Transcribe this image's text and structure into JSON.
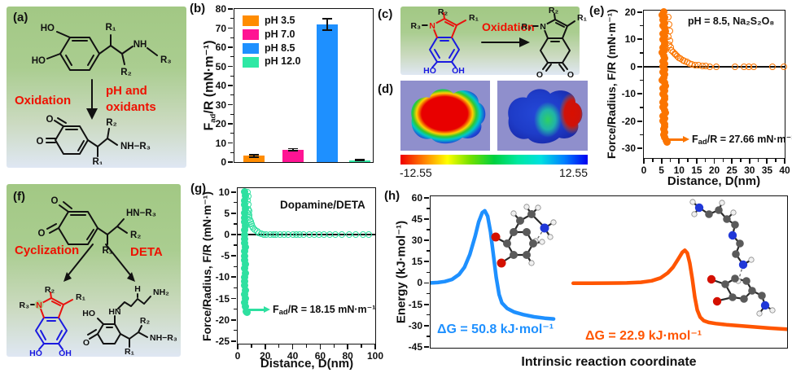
{
  "colors": {
    "text_red": "#ee1100",
    "struct_red": "#e8120e",
    "struct_blue": "#1a1ae0",
    "green_bg_top": "#a2c884",
    "green_bg_mid": "#aacd90",
    "green_bg_low": "#cbdac0",
    "green_bg_bottom": "#dfe7f3",
    "lavender_bg": "#8f8fcc",
    "colorbar": [
      "#f00000",
      "#ff8000",
      "#ffff00",
      "#70e000",
      "#00d040",
      "#00e8a0",
      "#00e0e0",
      "#0080ff",
      "#0000f0"
    ]
  },
  "panels": {
    "a": {
      "label": "(a)",
      "oxidation_label": "Oxidation",
      "condition_line1": "pH and",
      "condition_line2": "oxidants"
    },
    "b": {
      "label": "(b)"
    },
    "c": {
      "label": "(c)",
      "oxidation_label": "Oxidation"
    },
    "d": {
      "label": "(d)",
      "scale_min": "-12.55",
      "scale_max": "12.55"
    },
    "e": {
      "label": "(e)"
    },
    "f": {
      "label": "(f)",
      "cyclization_label": "Cyclization",
      "deta_label": "DETA"
    },
    "g": {
      "label": "(g)"
    },
    "h": {
      "label": "(h)"
    }
  },
  "chem_labels": {
    "r1": "R₁",
    "r2": "R₂",
    "r3": "R₃",
    "ho": "HO",
    "oh": "OH",
    "o": "O",
    "nh": "NH",
    "hn": "HN",
    "n": "N",
    "h": "H",
    "nh2": "NH₂",
    "nh_r3": "NH−R₃",
    "hn_r3": "HN−R₃"
  },
  "chart_data": [
    {
      "panel": "b",
      "type": "bar",
      "ylabel_prefix": "F",
      "ylabel_sub": "ad",
      "ylabel_rest": "/R (mN·m⁻¹)",
      "categories": [
        "pH 3.5",
        "pH 7.0",
        "pH 8.5",
        "pH 12.0"
      ],
      "values": [
        3.2,
        6.5,
        72,
        1.0
      ],
      "errors": [
        0.6,
        0.5,
        3,
        0.3
      ],
      "colors": [
        "#ff8c00",
        "#ff1493",
        "#1e90ff",
        "#2ee8a4"
      ],
      "ylim": [
        0,
        80
      ],
      "yticks": [
        0,
        10,
        20,
        30,
        40,
        50,
        60,
        70,
        80
      ],
      "legend_position": "top-left",
      "grid": false
    },
    {
      "panel": "e",
      "type": "scatter",
      "title": "pH = 8.5, Na₂S₂O₈",
      "xlabel": "Distance, D(nm)",
      "ylabel": "Force/Radius, F/R (mN·m⁻¹)",
      "marker_color": "#fb7500",
      "xlim": [
        0,
        40
      ],
      "xticks": [
        0,
        5,
        10,
        15,
        20,
        25,
        30,
        35,
        40
      ],
      "ylim": [
        -33.5,
        20.5
      ],
      "yticks": [
        20,
        10,
        0,
        -10,
        -20,
        -30
      ],
      "adhesion_prefix": "F",
      "adhesion_sub": "ad",
      "adhesion_rest": "/R = 27.66 mN·m⁻¹",
      "adhesion_value": -27.66,
      "points_filled": [
        [
          5.6,
          20
        ],
        [
          5.3,
          19
        ],
        [
          5.9,
          18
        ],
        [
          5.5,
          17
        ],
        [
          6.0,
          16
        ],
        [
          5.4,
          15
        ],
        [
          5.8,
          14
        ],
        [
          6.1,
          13
        ],
        [
          5.5,
          12
        ],
        [
          5.9,
          11
        ],
        [
          5.4,
          10
        ],
        [
          5.8,
          9
        ],
        [
          6.0,
          8
        ],
        [
          5.5,
          7
        ],
        [
          5.9,
          6
        ],
        [
          5.3,
          5
        ],
        [
          5.7,
          4
        ],
        [
          6.0,
          3
        ],
        [
          5.5,
          2
        ],
        [
          5.8,
          1
        ],
        [
          5.4,
          0
        ],
        [
          5.9,
          -1
        ],
        [
          5.5,
          -2
        ],
        [
          6.0,
          -3
        ],
        [
          5.6,
          -4
        ],
        [
          5.3,
          -5
        ],
        [
          5.8,
          -6
        ],
        [
          6.1,
          -7
        ],
        [
          5.5,
          -8
        ],
        [
          5.9,
          -9
        ],
        [
          5.4,
          -10
        ],
        [
          5.8,
          -11
        ],
        [
          6.0,
          -12
        ],
        [
          5.5,
          -13
        ],
        [
          5.9,
          -14
        ],
        [
          5.4,
          -15
        ],
        [
          5.8,
          -16
        ],
        [
          6.1,
          -17
        ],
        [
          5.5,
          -18
        ],
        [
          5.9,
          -19
        ],
        [
          5.5,
          -20
        ],
        [
          5.8,
          -21
        ],
        [
          6.0,
          -22
        ],
        [
          5.6,
          -23
        ],
        [
          5.9,
          -24
        ],
        [
          5.6,
          -25
        ],
        [
          6.0,
          -26
        ],
        [
          6.3,
          -27
        ],
        [
          6.6,
          -27.66
        ]
      ],
      "points_open": [
        [
          6.9,
          18
        ],
        [
          7.1,
          15.5
        ],
        [
          7.3,
          13
        ],
        [
          7.0,
          11
        ],
        [
          7.4,
          9.5
        ],
        [
          7.2,
          8
        ],
        [
          7.6,
          7
        ],
        [
          7.9,
          6
        ],
        [
          8.3,
          5.3
        ],
        [
          8.7,
          4.8
        ],
        [
          9.1,
          4.3
        ],
        [
          9.5,
          3.8
        ],
        [
          10.0,
          3.3
        ],
        [
          10.5,
          2.8
        ],
        [
          11.0,
          2.4
        ],
        [
          11.6,
          2.0
        ],
        [
          12.2,
          1.6
        ],
        [
          12.9,
          1.2
        ],
        [
          13.7,
          0.9
        ],
        [
          14.6,
          0.6
        ],
        [
          15.6,
          0.4
        ],
        [
          16.6,
          0.2
        ],
        [
          17.6,
          0.1
        ],
        [
          18.8,
          0
        ],
        [
          20.5,
          0
        ],
        [
          26.0,
          0
        ],
        [
          28.5,
          0
        ],
        [
          29.8,
          0
        ],
        [
          31.2,
          0
        ],
        [
          36.5,
          0
        ],
        [
          39.8,
          0
        ]
      ]
    },
    {
      "panel": "g",
      "type": "scatter",
      "title": "Dopamine/DETA",
      "xlabel": "Distance, D(nm)",
      "ylabel": "Force/Radius, F/R (mN·m⁻¹)",
      "marker_color": "#2ee0a0",
      "xlim": [
        0,
        100
      ],
      "xticks": [
        0,
        20,
        40,
        60,
        80,
        100
      ],
      "ylim": [
        -25.6,
        10.9
      ],
      "yticks": [
        10,
        5,
        0,
        -5,
        -10,
        -15,
        -20,
        -25
      ],
      "adhesion_prefix": "F",
      "adhesion_sub": "ad",
      "adhesion_rest": "/R = 18.15  mN·m⁻¹",
      "adhesion_value": -18.15,
      "points_filled": [
        [
          5.0,
          10
        ],
        [
          5.4,
          9
        ],
        [
          4.8,
          8
        ],
        [
          5.2,
          7
        ],
        [
          5.6,
          6
        ],
        [
          4.9,
          5
        ],
        [
          5.3,
          4
        ],
        [
          5.0,
          3
        ],
        [
          5.5,
          2
        ],
        [
          5.1,
          1
        ],
        [
          4.9,
          0
        ],
        [
          5.3,
          -1
        ],
        [
          5.0,
          -2
        ],
        [
          5.5,
          -3
        ],
        [
          5.1,
          -4
        ],
        [
          4.8,
          -5
        ],
        [
          5.3,
          -6
        ],
        [
          5.6,
          -7
        ],
        [
          5.0,
          -8
        ],
        [
          5.4,
          -9
        ],
        [
          5.1,
          -10
        ],
        [
          4.9,
          -11
        ],
        [
          5.3,
          -12
        ],
        [
          5.6,
          -13
        ],
        [
          5.1,
          -14
        ],
        [
          5.4,
          -15
        ],
        [
          5.0,
          -16
        ],
        [
          5.6,
          -17
        ],
        [
          6.1,
          -18
        ],
        [
          6.6,
          -18.15
        ]
      ],
      "points_open": [
        [
          7.2,
          10
        ],
        [
          7.6,
          9
        ],
        [
          7.3,
          8
        ],
        [
          7.9,
          7
        ],
        [
          7.5,
          6
        ],
        [
          8.1,
          5.5
        ],
        [
          7.7,
          5
        ],
        [
          8.4,
          4.5
        ],
        [
          8.1,
          4
        ],
        [
          8.7,
          3.5
        ],
        [
          9.2,
          3
        ],
        [
          9.8,
          2.5
        ],
        [
          10.6,
          2
        ],
        [
          11.5,
          1.5
        ],
        [
          12.6,
          1.1
        ],
        [
          14.0,
          0.7
        ],
        [
          15.5,
          0.4
        ],
        [
          17,
          0.2
        ],
        [
          19,
          0
        ],
        [
          21,
          0
        ],
        [
          23.5,
          0
        ],
        [
          26,
          0
        ],
        [
          28,
          0
        ],
        [
          31,
          0
        ],
        [
          34,
          0
        ],
        [
          36.5,
          0
        ],
        [
          40,
          0
        ],
        [
          42.5,
          0
        ],
        [
          45,
          0
        ],
        [
          48,
          0
        ],
        [
          52,
          0
        ],
        [
          55.5,
          0
        ],
        [
          59,
          0
        ],
        [
          63,
          0
        ],
        [
          67,
          0
        ],
        [
          71,
          0
        ],
        [
          76,
          0
        ],
        [
          81,
          0
        ],
        [
          86,
          0
        ],
        [
          91,
          0
        ],
        [
          95,
          0
        ]
      ]
    },
    {
      "panel": "h",
      "type": "line",
      "xlabel": "Intrinsic reaction coordinate",
      "ylabel": "Energy (kJ·mol⁻¹)",
      "xlim": [
        0,
        1
      ],
      "ylim": [
        -45.6,
        61
      ],
      "yticks": [
        60,
        45,
        30,
        15,
        0,
        -15,
        -30,
        -45
      ],
      "series": [
        {
          "delta_g": "ΔG = 50.8 kJ·mol⁻¹",
          "color": "#1e90ff",
          "peak": 50.8,
          "points": [
            [
              0,
              0
            ],
            [
              0.02,
              0.3
            ],
            [
              0.04,
              1
            ],
            [
              0.06,
              2.5
            ],
            [
              0.08,
              6
            ],
            [
              0.095,
              11
            ],
            [
              0.11,
              20
            ],
            [
              0.125,
              33
            ],
            [
              0.135,
              43
            ],
            [
              0.145,
              49.5
            ],
            [
              0.152,
              50.8
            ],
            [
              0.16,
              47
            ],
            [
              0.168,
              36
            ],
            [
              0.176,
              20
            ],
            [
              0.184,
              4
            ],
            [
              0.192,
              -8
            ],
            [
              0.2,
              -14
            ],
            [
              0.215,
              -18
            ],
            [
              0.235,
              -20.5
            ],
            [
              0.26,
              -22.3
            ],
            [
              0.29,
              -23.8
            ],
            [
              0.32,
              -24.8
            ],
            [
              0.345,
              -25.3
            ]
          ]
        },
        {
          "delta_g": "ΔG = 22.9 kJ·mol⁻¹",
          "color": "#ff5500",
          "peak": 22.9,
          "points": [
            [
              0.4,
              -0.2
            ],
            [
              0.45,
              -0.2
            ],
            [
              0.5,
              -0.1
            ],
            [
              0.55,
              0
            ],
            [
              0.59,
              0.5
            ],
            [
              0.62,
              1.5
            ],
            [
              0.645,
              3.5
            ],
            [
              0.665,
              7
            ],
            [
              0.68,
              11
            ],
            [
              0.695,
              17
            ],
            [
              0.706,
              21.5
            ],
            [
              0.713,
              23
            ],
            [
              0.72,
              21
            ],
            [
              0.727,
              14
            ],
            [
              0.734,
              3
            ],
            [
              0.741,
              -10
            ],
            [
              0.748,
              -19
            ],
            [
              0.756,
              -24
            ],
            [
              0.766,
              -26.5
            ],
            [
              0.78,
              -27.8
            ],
            [
              0.8,
              -28.6
            ],
            [
              0.83,
              -29.4
            ],
            [
              0.87,
              -30.2
            ],
            [
              0.91,
              -31
            ],
            [
              0.95,
              -31.8
            ],
            [
              1,
              -32.6
            ]
          ]
        }
      ]
    }
  ]
}
